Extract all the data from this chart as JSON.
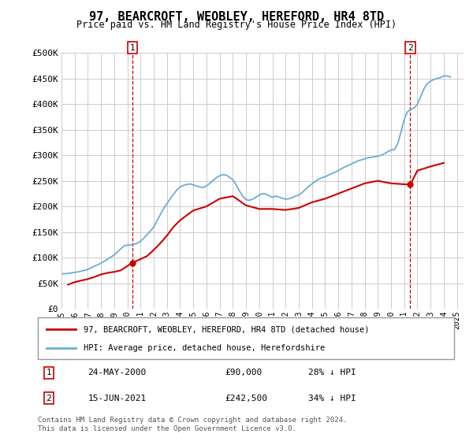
{
  "title": "97, BEARCROFT, WEOBLEY, HEREFORD, HR4 8TD",
  "subtitle": "Price paid vs. HM Land Registry's House Price Index (HPI)",
  "ylabel_ticks": [
    "£0",
    "£50K",
    "£100K",
    "£150K",
    "£200K",
    "£250K",
    "£300K",
    "£350K",
    "£400K",
    "£450K",
    "£500K"
  ],
  "ytick_values": [
    0,
    50000,
    100000,
    150000,
    200000,
    250000,
    300000,
    350000,
    400000,
    450000,
    500000
  ],
  "ylim": [
    0,
    500000
  ],
  "xlim_start": 1995.0,
  "xlim_end": 2025.5,
  "xtick_years": [
    1995,
    1996,
    1997,
    1998,
    1999,
    2000,
    2001,
    2002,
    2003,
    2004,
    2005,
    2006,
    2007,
    2008,
    2009,
    2010,
    2011,
    2012,
    2013,
    2014,
    2015,
    2016,
    2017,
    2018,
    2019,
    2020,
    2021,
    2022,
    2023,
    2024,
    2025
  ],
  "hpi_color": "#6aaed6",
  "price_color": "#cc0000",
  "annotation_color": "#cc0000",
  "grid_color": "#cccccc",
  "background_color": "#ffffff",
  "legend_box_color": "#ffffff",
  "legend_border_color": "#999999",
  "point1_year": 2000.39,
  "point1_price": 90000,
  "point1_label": "1",
  "point1_date": "24-MAY-2000",
  "point1_amount": "£90,000",
  "point1_pct": "28% ↓ HPI",
  "point2_year": 2021.46,
  "point2_price": 242500,
  "point2_label": "2",
  "point2_date": "15-JUN-2021",
  "point2_amount": "£242,500",
  "point2_pct": "34% ↓ HPI",
  "legend_line1": "97, BEARCROFT, WEOBLEY, HEREFORD, HR4 8TD (detached house)",
  "legend_line2": "HPI: Average price, detached house, Herefordshire",
  "footer": "Contains HM Land Registry data © Crown copyright and database right 2024.\nThis data is licensed under the Open Government Licence v3.0.",
  "hpi_data_x": [
    1995.0,
    1995.25,
    1995.5,
    1995.75,
    1996.0,
    1996.25,
    1996.5,
    1996.75,
    1997.0,
    1997.25,
    1997.5,
    1997.75,
    1998.0,
    1998.25,
    1998.5,
    1998.75,
    1999.0,
    1999.25,
    1999.5,
    1999.75,
    2000.0,
    2000.25,
    2000.5,
    2000.75,
    2001.0,
    2001.25,
    2001.5,
    2001.75,
    2002.0,
    2002.25,
    2002.5,
    2002.75,
    2003.0,
    2003.25,
    2003.5,
    2003.75,
    2004.0,
    2004.25,
    2004.5,
    2004.75,
    2005.0,
    2005.25,
    2005.5,
    2005.75,
    2006.0,
    2006.25,
    2006.5,
    2006.75,
    2007.0,
    2007.25,
    2007.5,
    2007.75,
    2008.0,
    2008.25,
    2008.5,
    2008.75,
    2009.0,
    2009.25,
    2009.5,
    2009.75,
    2010.0,
    2010.25,
    2010.5,
    2010.75,
    2011.0,
    2011.25,
    2011.5,
    2011.75,
    2012.0,
    2012.25,
    2012.5,
    2012.75,
    2013.0,
    2013.25,
    2013.5,
    2013.75,
    2014.0,
    2014.25,
    2014.5,
    2014.75,
    2015.0,
    2015.25,
    2015.5,
    2015.75,
    2016.0,
    2016.25,
    2016.5,
    2016.75,
    2017.0,
    2017.25,
    2017.5,
    2017.75,
    2018.0,
    2018.25,
    2018.5,
    2018.75,
    2019.0,
    2019.25,
    2019.5,
    2019.75,
    2020.0,
    2020.25,
    2020.5,
    2020.75,
    2021.0,
    2021.25,
    2021.5,
    2021.75,
    2022.0,
    2022.25,
    2022.5,
    2022.75,
    2023.0,
    2023.25,
    2023.5,
    2023.75,
    2024.0,
    2024.25,
    2024.5
  ],
  "hpi_data_y": [
    68000,
    68500,
    69000,
    70000,
    71000,
    72000,
    73500,
    75000,
    77000,
    80000,
    83000,
    86000,
    89000,
    93000,
    97000,
    101000,
    105000,
    111000,
    117000,
    123000,
    124000,
    125000,
    126000,
    128000,
    132000,
    138000,
    145000,
    152000,
    160000,
    172000,
    184000,
    196000,
    205000,
    215000,
    224000,
    232000,
    238000,
    241000,
    243000,
    244000,
    242000,
    240000,
    238000,
    237000,
    240000,
    245000,
    251000,
    256000,
    260000,
    262000,
    261000,
    257000,
    252000,
    242000,
    230000,
    220000,
    213000,
    212000,
    214000,
    218000,
    222000,
    225000,
    224000,
    221000,
    218000,
    220000,
    218000,
    216000,
    214000,
    215000,
    217000,
    220000,
    222000,
    227000,
    233000,
    239000,
    244000,
    249000,
    253000,
    256000,
    258000,
    261000,
    264000,
    267000,
    270000,
    274000,
    277000,
    280000,
    283000,
    286000,
    289000,
    291000,
    293000,
    295000,
    296000,
    297000,
    298000,
    300000,
    303000,
    307000,
    310000,
    311000,
    322000,
    345000,
    370000,
    385000,
    390000,
    392000,
    400000,
    415000,
    430000,
    440000,
    445000,
    448000,
    450000,
    452000,
    455000,
    455000,
    453000
  ],
  "price_data_x": [
    1995.5,
    1996.0,
    1996.5,
    1997.0,
    1997.5,
    1998.0,
    1998.5,
    1999.0,
    1999.5,
    2000.39,
    2001.0,
    2001.5,
    2002.0,
    2002.5,
    2003.0,
    2003.5,
    2004.0,
    2005.0,
    2006.0,
    2007.0,
    2008.0,
    2009.0,
    2010.0,
    2011.0,
    2012.0,
    2013.0,
    2014.0,
    2015.0,
    2016.0,
    2017.0,
    2018.0,
    2019.0,
    2020.0,
    2021.46,
    2022.0,
    2023.0,
    2024.0
  ],
  "price_data_y": [
    47000,
    52000,
    55000,
    58000,
    62000,
    67000,
    70000,
    72000,
    75000,
    90000,
    97000,
    103000,
    115000,
    128000,
    143000,
    160000,
    173000,
    192000,
    200000,
    215000,
    220000,
    202000,
    195000,
    195000,
    193000,
    197000,
    208000,
    215000,
    225000,
    235000,
    245000,
    250000,
    245000,
    242500,
    270000,
    278000,
    285000
  ]
}
